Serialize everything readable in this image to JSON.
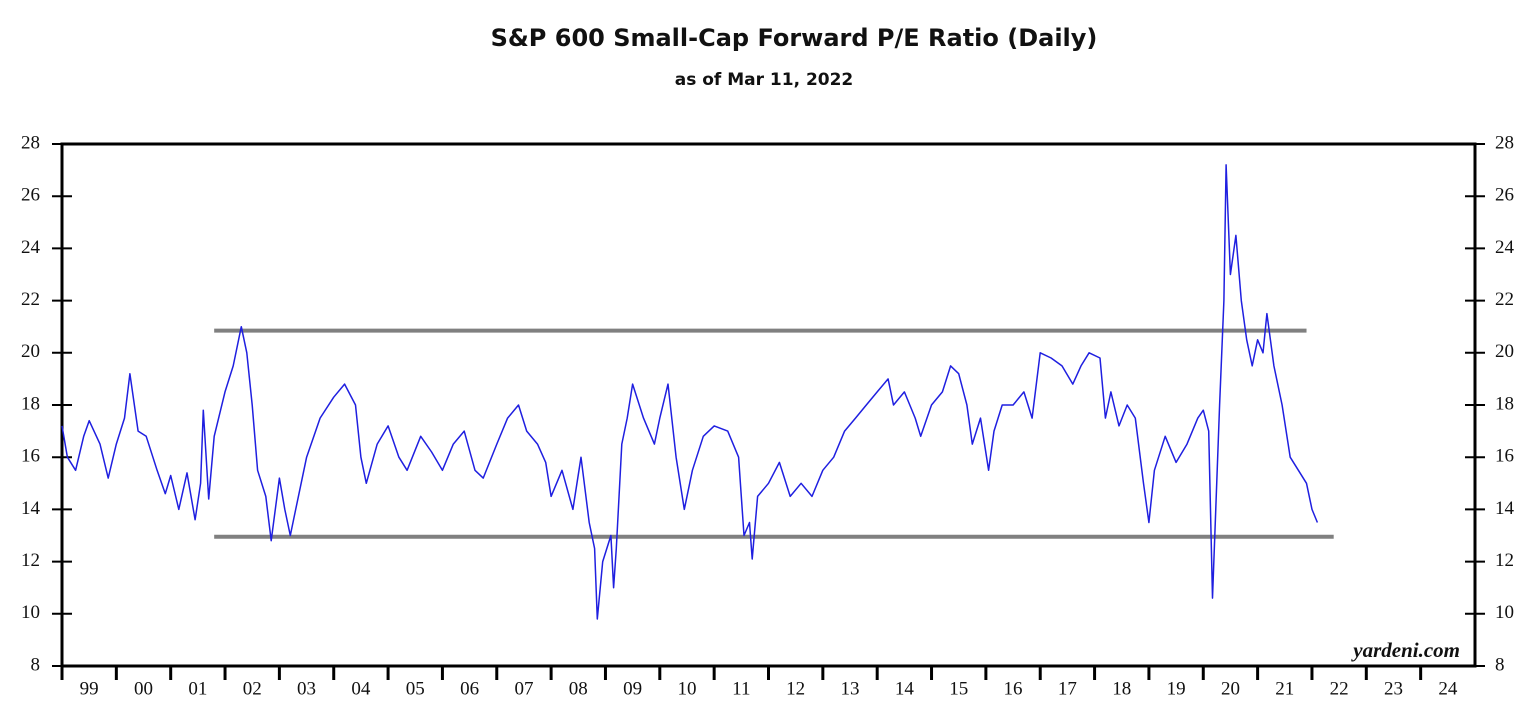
{
  "chart_data": {
    "type": "line",
    "title": "S&P 600 Small-Cap Forward P/E Ratio (Daily)",
    "subtitle": "as of Mar 11, 2022",
    "annotation": "yardeni.com",
    "xlim": [
      1999,
      2025
    ],
    "ylim": [
      8,
      28
    ],
    "yticks": [
      8,
      10,
      12,
      14,
      16,
      18,
      20,
      22,
      24,
      26,
      28
    ],
    "xticks": [
      {
        "value": 1999,
        "label": "99"
      },
      {
        "value": 2000,
        "label": "00"
      },
      {
        "value": 2001,
        "label": "01"
      },
      {
        "value": 2002,
        "label": "02"
      },
      {
        "value": 2003,
        "label": "03"
      },
      {
        "value": 2004,
        "label": "04"
      },
      {
        "value": 2005,
        "label": "05"
      },
      {
        "value": 2006,
        "label": "06"
      },
      {
        "value": 2007,
        "label": "07"
      },
      {
        "value": 2008,
        "label": "08"
      },
      {
        "value": 2009,
        "label": "09"
      },
      {
        "value": 2010,
        "label": "10"
      },
      {
        "value": 2011,
        "label": "11"
      },
      {
        "value": 2012,
        "label": "12"
      },
      {
        "value": 2013,
        "label": "13"
      },
      {
        "value": 2014,
        "label": "14"
      },
      {
        "value": 2015,
        "label": "15"
      },
      {
        "value": 2016,
        "label": "16"
      },
      {
        "value": 2017,
        "label": "17"
      },
      {
        "value": 2018,
        "label": "18"
      },
      {
        "value": 2019,
        "label": "19"
      },
      {
        "value": 2020,
        "label": "20"
      },
      {
        "value": 2021,
        "label": "21"
      },
      {
        "value": 2022,
        "label": "22"
      },
      {
        "value": 2023,
        "label": "23"
      },
      {
        "value": 2024,
        "label": "24"
      }
    ],
    "reference_lines": [
      {
        "value": 20.85,
        "x": [
          2001.8,
          2021.9
        ],
        "color": "#808080"
      },
      {
        "value": 12.95,
        "x": [
          2001.8,
          2022.4
        ],
        "color": "#808080"
      }
    ],
    "series": [
      {
        "color": "#1f1fe0",
        "x": [
          1999.0,
          1999.1,
          1999.25,
          1999.4,
          1999.5,
          1999.7,
          1999.85,
          2000.0,
          2000.15,
          2000.25,
          2000.4,
          2000.55,
          2000.75,
          2000.9,
          2001.0,
          2001.15,
          2001.3,
          2001.45,
          2001.55,
          2001.6,
          2001.7,
          2001.8,
          2002.0,
          2002.15,
          2002.3,
          2002.4,
          2002.5,
          2002.6,
          2002.75,
          2002.85,
          2003.0,
          2003.1,
          2003.2,
          2003.3,
          2003.5,
          2003.75,
          2004.0,
          2004.2,
          2004.4,
          2004.5,
          2004.6,
          2004.8,
          2005.0,
          2005.2,
          2005.35,
          2005.6,
          2005.8,
          2006.0,
          2006.2,
          2006.4,
          2006.6,
          2006.75,
          2007.0,
          2007.2,
          2007.4,
          2007.55,
          2007.75,
          2007.9,
          2008.0,
          2008.2,
          2008.4,
          2008.55,
          2008.7,
          2008.8,
          2008.85,
          2008.95,
          2009.1,
          2009.15,
          2009.2,
          2009.3,
          2009.4,
          2009.5,
          2009.7,
          2009.9,
          2010.0,
          2010.15,
          2010.3,
          2010.45,
          2010.6,
          2010.8,
          2011.0,
          2011.25,
          2011.45,
          2011.55,
          2011.65,
          2011.7,
          2011.8,
          2012.0,
          2012.2,
          2012.4,
          2012.6,
          2012.8,
          2013.0,
          2013.2,
          2013.4,
          2013.6,
          2013.8,
          2014.0,
          2014.2,
          2014.3,
          2014.5,
          2014.7,
          2014.8,
          2015.0,
          2015.2,
          2015.35,
          2015.5,
          2015.65,
          2015.75,
          2015.9,
          2016.05,
          2016.15,
          2016.3,
          2016.5,
          2016.7,
          2016.85,
          2017.0,
          2017.2,
          2017.4,
          2017.6,
          2017.75,
          2017.9,
          2018.1,
          2018.2,
          2018.3,
          2018.45,
          2018.6,
          2018.75,
          2018.9,
          2019.0,
          2019.1,
          2019.3,
          2019.5,
          2019.7,
          2019.9,
          2020.0,
          2020.1,
          2020.17,
          2020.3,
          2020.38,
          2020.42,
          2020.5,
          2020.6,
          2020.7,
          2020.8,
          2020.9,
          2021.0,
          2021.1,
          2021.17,
          2021.3,
          2021.45,
          2021.6,
          2021.75,
          2021.9,
          2022.0,
          2022.1
        ],
        "values": [
          17.2,
          16.0,
          15.5,
          16.8,
          17.4,
          16.5,
          15.2,
          16.5,
          17.5,
          19.2,
          17.0,
          16.8,
          15.5,
          14.6,
          15.3,
          14.0,
          15.4,
          13.6,
          15.0,
          17.8,
          14.4,
          16.8,
          18.5,
          19.5,
          21.0,
          20.0,
          18.0,
          15.5,
          14.5,
          12.8,
          15.2,
          14.0,
          13.0,
          14.0,
          16.0,
          17.5,
          18.3,
          18.8,
          18.0,
          16.0,
          15.0,
          16.5,
          17.2,
          16.0,
          15.5,
          16.8,
          16.2,
          15.5,
          16.5,
          17.0,
          15.5,
          15.2,
          16.5,
          17.5,
          18.0,
          17.0,
          16.5,
          15.8,
          14.5,
          15.5,
          14.0,
          16.0,
          13.5,
          12.5,
          9.8,
          12.0,
          13.0,
          11.0,
          12.5,
          16.5,
          17.5,
          18.8,
          17.5,
          16.5,
          17.5,
          18.8,
          16.0,
          14.0,
          15.5,
          16.8,
          17.2,
          17.0,
          16.0,
          13.0,
          13.5,
          12.1,
          14.5,
          15.0,
          15.8,
          14.5,
          15.0,
          14.5,
          15.5,
          16.0,
          17.0,
          17.5,
          18.0,
          18.5,
          19.0,
          18.0,
          18.5,
          17.5,
          16.8,
          18.0,
          18.5,
          19.5,
          19.2,
          18.0,
          16.5,
          17.5,
          15.5,
          17.0,
          18.0,
          18.0,
          18.5,
          17.5,
          20.0,
          19.8,
          19.5,
          18.8,
          19.5,
          20.0,
          19.8,
          17.5,
          18.5,
          17.2,
          18.0,
          17.5,
          15.0,
          13.5,
          15.5,
          16.8,
          15.8,
          16.5,
          17.5,
          17.8,
          17.0,
          10.6,
          18.0,
          22.0,
          27.2,
          23.0,
          24.5,
          22.0,
          20.5,
          19.5,
          20.5,
          20.0,
          21.5,
          19.5,
          18.0,
          16.0,
          15.5,
          15.0,
          14.0,
          13.5
        ]
      }
    ]
  }
}
